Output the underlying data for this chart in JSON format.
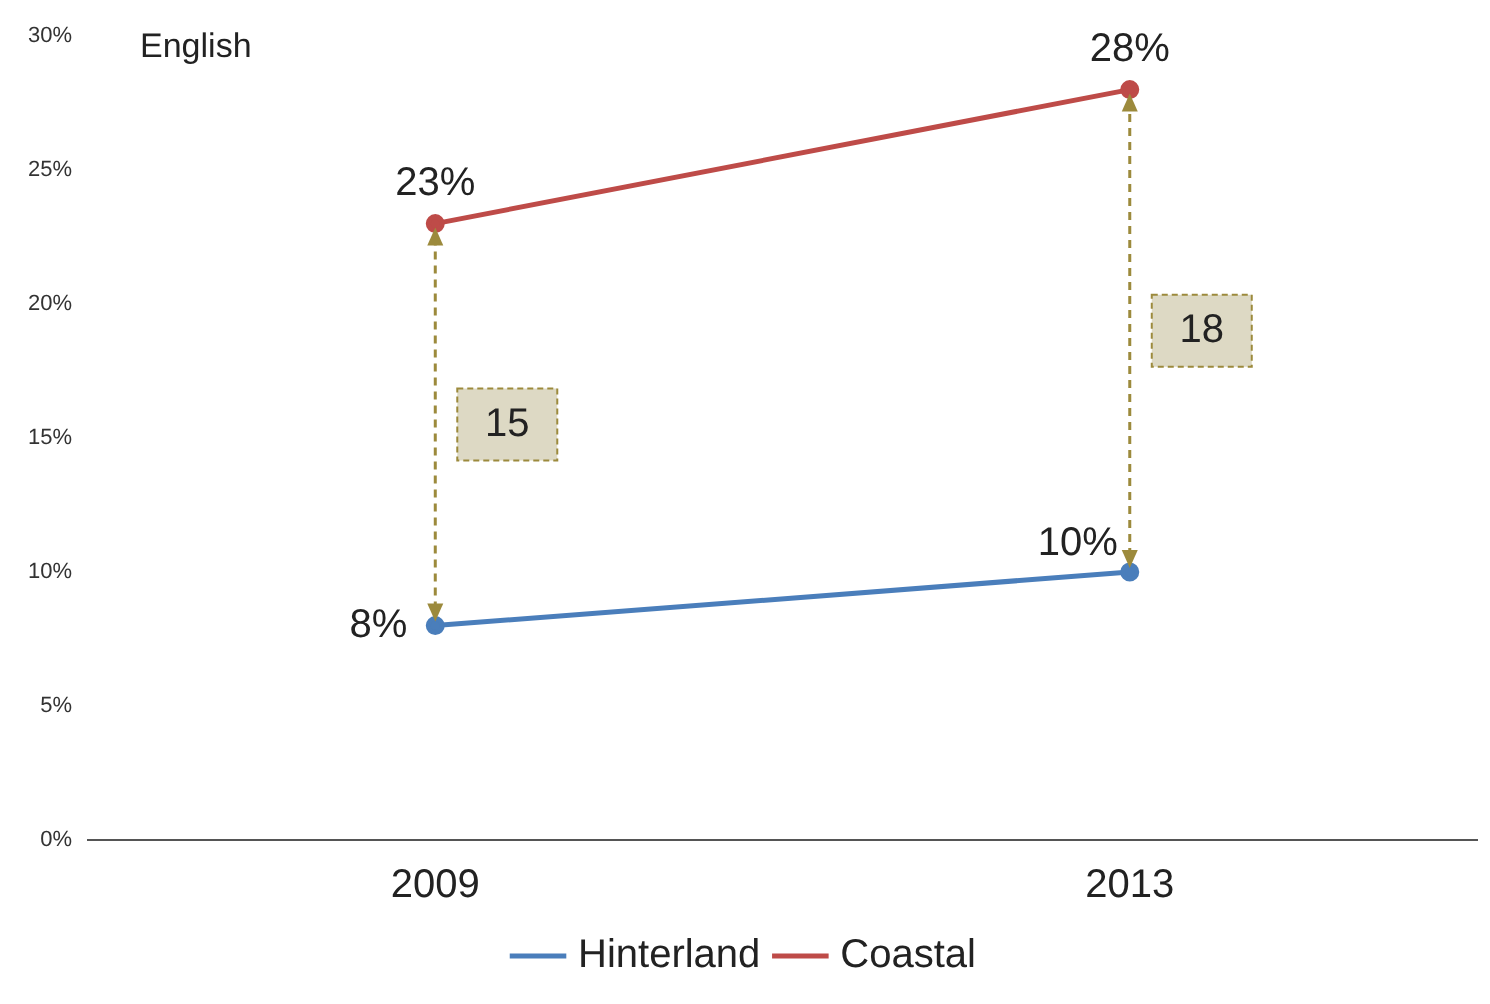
{
  "chart_data": {
    "type": "line",
    "categories": [
      "2009",
      "2013"
    ],
    "series": [
      {
        "name": "Hinterland",
        "color": "#4a7ebb",
        "values": [
          8,
          10
        ],
        "value_labels": [
          "8%",
          "10%"
        ]
      },
      {
        "name": "Coastal",
        "color": "#be4b48",
        "values": [
          23,
          28
        ],
        "value_labels": [
          "23%",
          "28%"
        ]
      }
    ],
    "ylim": [
      0,
      30
    ],
    "yticks": [
      {
        "value": 0,
        "label": "0%"
      },
      {
        "value": 5,
        "label": "5%"
      },
      {
        "value": 10,
        "label": "10%"
      },
      {
        "value": 15,
        "label": "15%"
      },
      {
        "value": 20,
        "label": "20%"
      },
      {
        "value": 25,
        "label": "25%"
      },
      {
        "value": 30,
        "label": "30%"
      }
    ],
    "annotations": [
      "English",
      "15",
      "18"
    ],
    "grid": false,
    "legend": "bottom",
    "marker": "circle",
    "line_style": "solid"
  }
}
